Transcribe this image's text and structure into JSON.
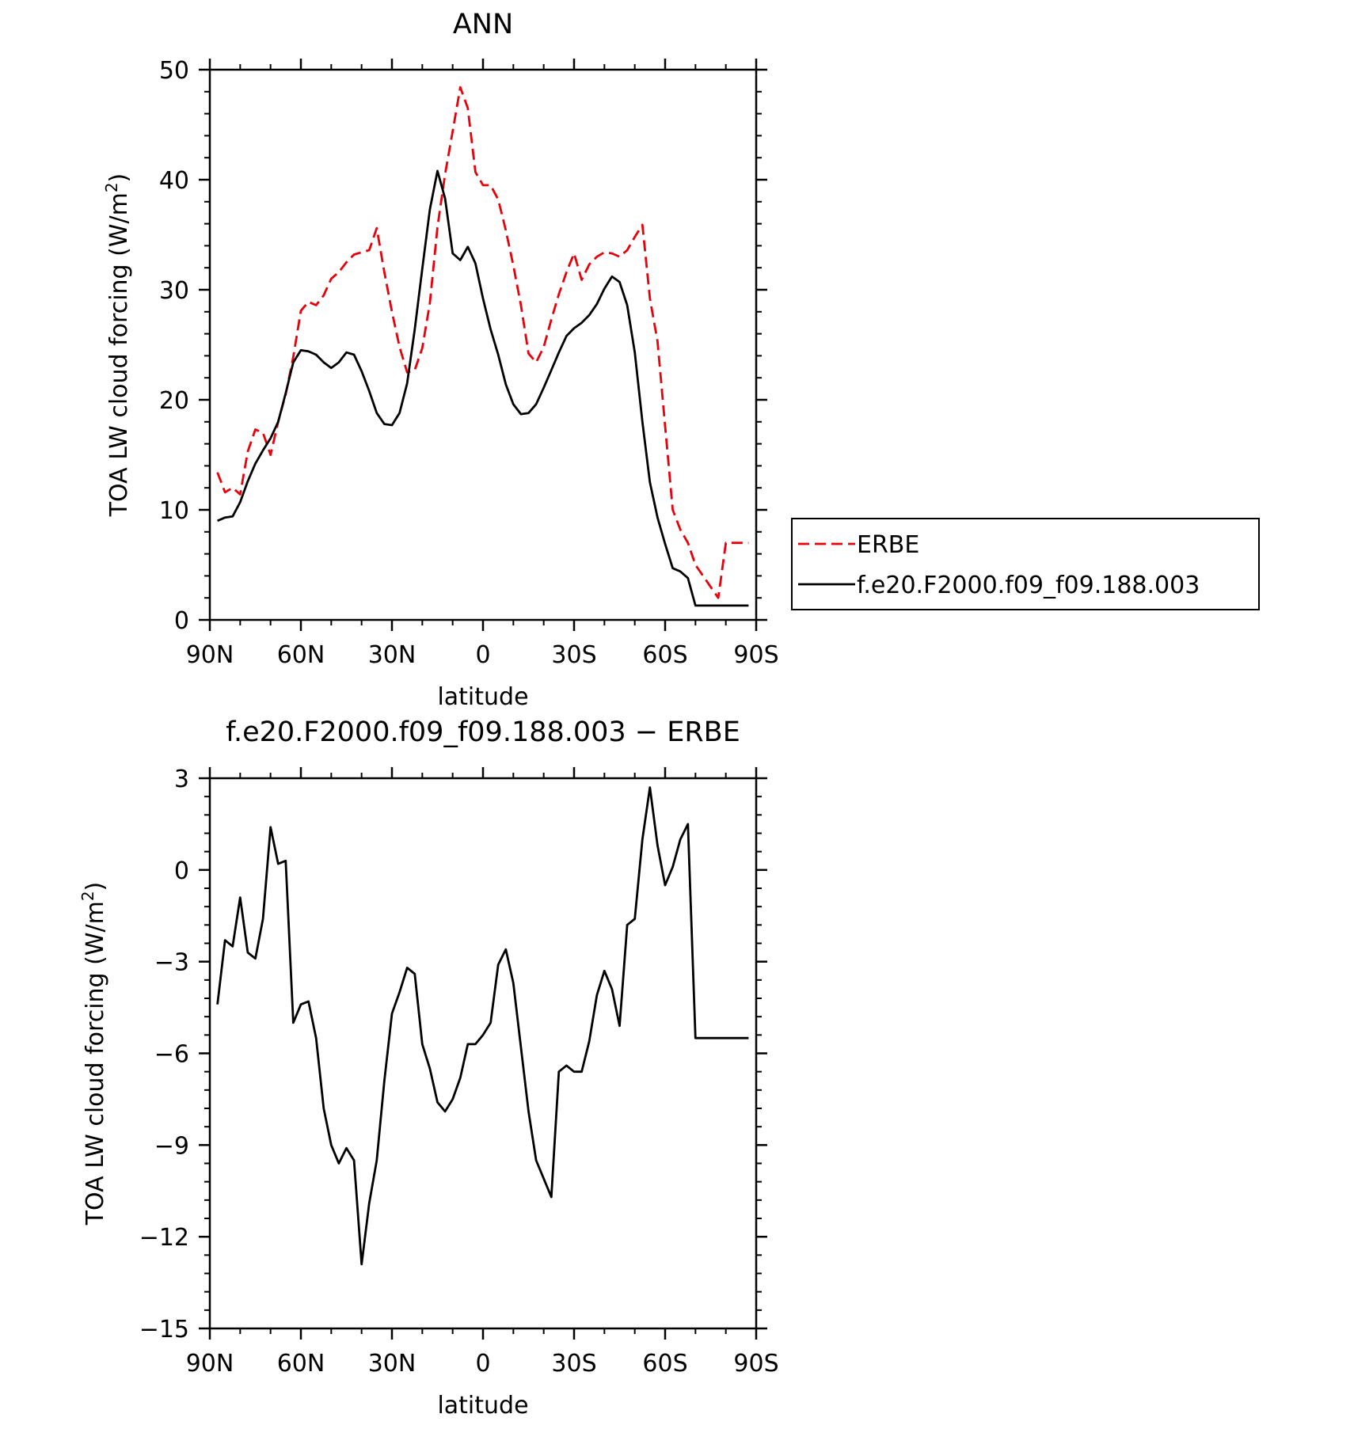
{
  "chart_data": [
    {
      "type": "line",
      "title": "ANN",
      "xlabel": "latitude",
      "ylabel": "TOA LW cloud forcing (W/m",
      "ylabel_sup": "2",
      "ylabel_close": ")",
      "xlim": [
        -90,
        90
      ],
      "ylim": [
        0,
        50
      ],
      "x_ticks": [
        -90,
        -60,
        -30,
        0,
        30,
        60,
        90
      ],
      "x_tick_labels": [
        "90N",
        "60N",
        "30N",
        "0",
        "30S",
        "60S",
        "90S"
      ],
      "y_ticks": [
        0,
        10,
        20,
        30,
        40,
        50
      ],
      "y_tick_labels": [
        "0",
        "10",
        "20",
        "30",
        "40",
        "50"
      ],
      "grid": false,
      "legend_position": "right",
      "x": [
        -87.5,
        -85,
        -82.5,
        -80,
        -77.5,
        -75,
        -72.5,
        -70,
        -67.5,
        -65,
        -62.5,
        -60,
        -57.5,
        -55,
        -52.5,
        -50,
        -47.5,
        -45,
        -42.5,
        -40,
        -37.5,
        -35,
        -32.5,
        -30,
        -27.5,
        -25,
        -22.5,
        -20,
        -17.5,
        -15,
        -12.5,
        -10,
        -7.5,
        -5,
        -2.5,
        0,
        2.5,
        5,
        7.5,
        10,
        12.5,
        15,
        17.5,
        20,
        22.5,
        25,
        27.5,
        30,
        32.5,
        35,
        37.5,
        40,
        42.5,
        45,
        47.5,
        50,
        52.5,
        55,
        57.5,
        60,
        62.5,
        65,
        67.5,
        70,
        72.5,
        75,
        77.5,
        80,
        82.5,
        85,
        87.5
      ],
      "series": [
        {
          "name": "ERBE",
          "color": "#e8000b",
          "dash": "dashed",
          "values": [
            13.4,
            11.6,
            12.0,
            11.4,
            15.3,
            17.3,
            17.0,
            15.0,
            18.0,
            20.5,
            23.9,
            28.1,
            28.9,
            28.6,
            29.5,
            31.0,
            31.6,
            32.5,
            33.2,
            33.4,
            33.6,
            35.6,
            31.6,
            28.0,
            24.8,
            22.5,
            22.7,
            24.7,
            28.8,
            35.7,
            40.5,
            44.4,
            48.4,
            46.5,
            40.7,
            39.5,
            39.5,
            38.2,
            35.4,
            32.2,
            28.6,
            24.2,
            23.4,
            24.8,
            27.3,
            29.6,
            31.6,
            33.3,
            30.9,
            32.3,
            33.0,
            33.4,
            33.3,
            33.0,
            33.6,
            34.8,
            35.9,
            29.2,
            25.3,
            17.6,
            10.0,
            8.2,
            7.0,
            5.0,
            4.0,
            3.0,
            2.0,
            7.0,
            7.0,
            7.0,
            7.0
          ]
        },
        {
          "name": "f.e20.F2000.f09_f09.188.003",
          "color": "#000000",
          "dash": "solid",
          "values": [
            9.0,
            9.3,
            9.4,
            10.7,
            12.6,
            14.2,
            15.4,
            16.5,
            18.0,
            20.6,
            23.4,
            24.5,
            24.4,
            24.1,
            23.4,
            22.9,
            23.4,
            24.3,
            24.1,
            22.6,
            20.8,
            18.8,
            17.8,
            17.7,
            18.8,
            21.5,
            26.4,
            31.9,
            37.3,
            40.8,
            38.3,
            33.3,
            32.7,
            33.9,
            32.4,
            29.2,
            26.4,
            24.1,
            21.4,
            19.6,
            18.7,
            18.8,
            19.6,
            21.1,
            22.7,
            24.3,
            25.8,
            26.5,
            27.0,
            27.7,
            28.7,
            30.1,
            31.2,
            30.7,
            28.6,
            24.3,
            18.0,
            12.5,
            9.3,
            6.9,
            4.7,
            4.4,
            3.8,
            1.3,
            1.3,
            1.3,
            1.3,
            1.3,
            1.3,
            1.3,
            1.3
          ]
        }
      ]
    },
    {
      "type": "line",
      "title": "f.e20.F2000.f09_f09.188.003 − ERBE",
      "xlabel": "latitude",
      "ylabel": "TOA LW cloud forcing (W/m",
      "ylabel_sup": "2",
      "ylabel_close": ")",
      "xlim": [
        -90,
        90
      ],
      "ylim": [
        -15,
        3
      ],
      "x_ticks": [
        -90,
        -60,
        -30,
        0,
        30,
        60,
        90
      ],
      "x_tick_labels": [
        "90N",
        "60N",
        "30N",
        "0",
        "30S",
        "60S",
        "90S"
      ],
      "y_ticks": [
        -15,
        -12,
        -9,
        -6,
        -3,
        0,
        3
      ],
      "y_tick_labels": [
        "−15",
        "−12",
        "−9",
        "−6",
        "−3",
        "0",
        "3"
      ],
      "grid": false,
      "x": [
        -87.5,
        -85,
        -82.5,
        -80,
        -77.5,
        -75,
        -72.5,
        -70,
        -67.5,
        -65,
        -62.5,
        -60,
        -57.5,
        -55,
        -52.5,
        -50,
        -47.5,
        -45,
        -42.5,
        -40,
        -37.5,
        -35,
        -32.5,
        -30,
        -27.5,
        -25,
        -22.5,
        -20,
        -17.5,
        -15,
        -12.5,
        -10,
        -7.5,
        -5,
        -2.5,
        0,
        2.5,
        5,
        7.5,
        10,
        12.5,
        15,
        17.5,
        20,
        22.5,
        25,
        27.5,
        30,
        32.5,
        35,
        37.5,
        40,
        42.5,
        45,
        47.5,
        50,
        52.5,
        55,
        57.5,
        60,
        62.5,
        65,
        67.5,
        70,
        72.5,
        75,
        77.5,
        80,
        82.5,
        85,
        87.5
      ],
      "series": [
        {
          "name": "",
          "color": "#000000",
          "dash": "solid",
          "values": [
            -4.4,
            -2.3,
            -2.5,
            -0.9,
            -2.7,
            -2.9,
            -1.6,
            1.4,
            0.2,
            0.3,
            -5.0,
            -4.4,
            -4.3,
            -5.5,
            -7.8,
            -9.0,
            -9.6,
            -9.1,
            -9.5,
            -12.9,
            -10.9,
            -9.5,
            -6.9,
            -4.7,
            -4.0,
            -3.2,
            -3.4,
            -5.7,
            -6.5,
            -7.6,
            -7.9,
            -7.5,
            -6.8,
            -5.7,
            -5.7,
            -5.4,
            -5.0,
            -3.1,
            -2.6,
            -3.7,
            -5.8,
            -7.9,
            -9.5,
            -10.1,
            -10.7,
            -6.6,
            -6.4,
            -6.6,
            -6.6,
            -5.6,
            -4.1,
            -3.3,
            -3.9,
            -5.1,
            -1.8,
            -1.6,
            1.0,
            2.7,
            0.8,
            -0.5,
            0.1,
            1.0,
            1.5,
            -5.5,
            -5.5,
            -5.5,
            -5.5,
            -5.5,
            -5.5,
            -5.5,
            -5.5
          ]
        }
      ]
    }
  ]
}
